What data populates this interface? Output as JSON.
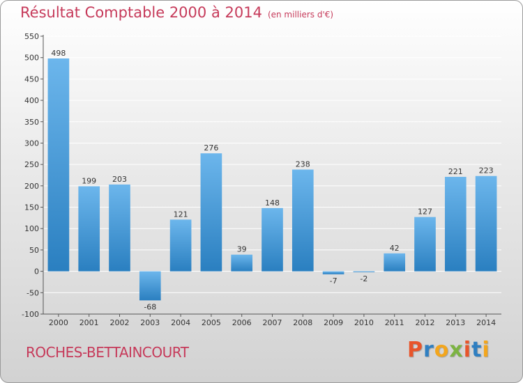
{
  "header": {
    "title": "Résultat Comptable 2000 à 2014",
    "subtitle": "(en milliers d'€)"
  },
  "footer": {
    "commune": "ROCHES-BETTAINCOURT",
    "logo_text": "Proxiti",
    "logo_colors": [
      "#e8552b",
      "#2f7fc1",
      "#f3a61d",
      "#7cb342",
      "#e8552b",
      "#2f7fc1",
      "#f3a61d"
    ]
  },
  "colors": {
    "title": "#c63a5a",
    "bar_light": "#6cb6ec",
    "bar_dark": "#2a7fc0",
    "grid": "#ffffff",
    "axis_text": "#333333"
  },
  "chart_data": {
    "type": "bar",
    "categories": [
      "2000",
      "2001",
      "2002",
      "2003",
      "2004",
      "2005",
      "2006",
      "2007",
      "2008",
      "2009",
      "2010",
      "2011",
      "2012",
      "2013",
      "2014"
    ],
    "values": [
      498,
      199,
      203,
      -68,
      121,
      276,
      39,
      148,
      238,
      -7,
      -2,
      42,
      127,
      221,
      223
    ],
    "data_labels": [
      "498",
      "199",
      "203",
      "-68",
      "121",
      "276",
      "39",
      "148",
      "238",
      "-7",
      "-2",
      "42",
      "127",
      "221",
      "223"
    ],
    "yticks": [
      -100,
      -50,
      0,
      50,
      100,
      150,
      200,
      250,
      300,
      350,
      400,
      450,
      500,
      550
    ],
    "ytick_labels": [
      "-100",
      "-50",
      "0",
      "50",
      "100",
      "150",
      "200",
      "250",
      "300",
      "350",
      "400",
      "450",
      "500",
      "550"
    ],
    "ylim": [
      -100,
      550
    ],
    "title": "Résultat Comptable 2000 à 2014",
    "xlabel": "",
    "ylabel": "",
    "grid": true,
    "legend": "none"
  }
}
